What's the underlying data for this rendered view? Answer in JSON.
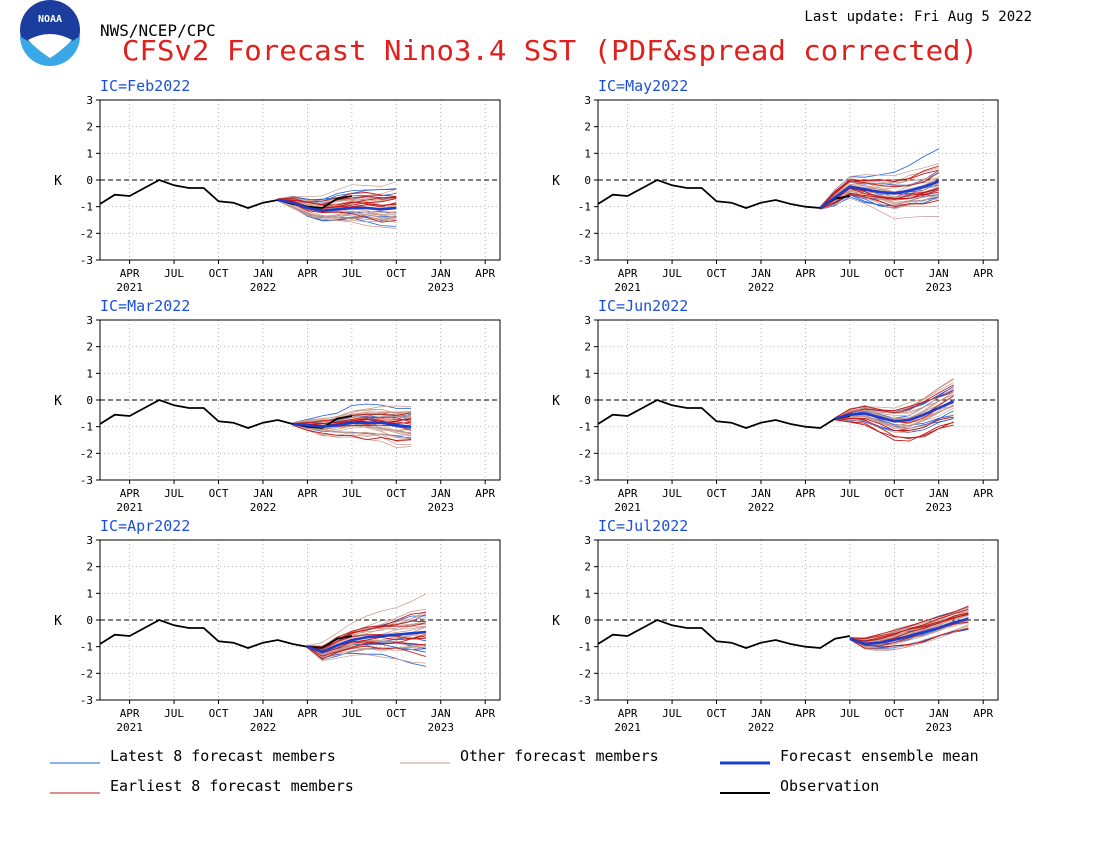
{
  "header": {
    "agency": "NWS/NCEP/CPC",
    "title": "CFSv2 Forecast Nino3.4 SST (PDF&spread corrected)",
    "last_update": "Last update: Fri Aug 5 2022",
    "logo_text": "NOAA"
  },
  "colors": {
    "latest": "#1f5fd9",
    "other": "#c8998a",
    "mean": "#1c3ccf",
    "earliest": "#c41818",
    "observation": "#000000",
    "title": "#e0201c",
    "ic_label": "#1a50d8"
  },
  "chart_data": {
    "type": "line",
    "ylabel": "K",
    "ylim": [
      -3,
      3
    ],
    "yticks": [
      "3",
      "2",
      "1",
      "0",
      "-1",
      "-2",
      "-3"
    ],
    "grid": true,
    "zero_line": "dashed",
    "x_ticks": [
      {
        "month": "APR",
        "year": "2021"
      },
      {
        "month": "JUL",
        "year": ""
      },
      {
        "month": "OCT",
        "year": ""
      },
      {
        "month": "JAN",
        "year": "2022"
      },
      {
        "month": "APR",
        "year": ""
      },
      {
        "month": "JUL",
        "year": ""
      },
      {
        "month": "OCT",
        "year": ""
      },
      {
        "month": "JAN",
        "year": "2023"
      },
      {
        "month": "APR",
        "year": ""
      }
    ],
    "x_range": [
      "2021-02",
      "2023-05"
    ],
    "observation": {
      "name": "Observation",
      "months": [
        "2021-02",
        "2021-03",
        "2021-04",
        "2021-05",
        "2021-06",
        "2021-07",
        "2021-08",
        "2021-09",
        "2021-10",
        "2021-11",
        "2021-12",
        "2022-01",
        "2022-02",
        "2022-03",
        "2022-04",
        "2022-05",
        "2022-06",
        "2022-07"
      ],
      "values": [
        -0.9,
        -0.55,
        -0.6,
        -0.3,
        0.0,
        -0.2,
        -0.3,
        -0.3,
        -0.8,
        -0.85,
        -1.05,
        -0.85,
        -0.75,
        -0.9,
        -1.0,
        -1.05,
        -0.7,
        -0.6
      ]
    },
    "panels": [
      {
        "label": "IC=Feb2022",
        "start": "2022-02",
        "length": 9,
        "mean": [
          -0.75,
          -0.85,
          -1.05,
          -1.15,
          -1.1,
          -1.05,
          -1.05,
          -1.1,
          -1.05
        ],
        "spread": [
          0.05,
          0.25,
          0.4,
          0.5,
          0.6,
          0.65,
          0.7,
          0.75,
          0.8
        ]
      },
      {
        "label": "IC=Mar2022",
        "start": "2022-03",
        "length": 9,
        "mean": [
          -0.9,
          -0.95,
          -1.0,
          -0.95,
          -0.85,
          -0.85,
          -0.85,
          -0.95,
          -1.0
        ],
        "spread": [
          0.05,
          0.25,
          0.4,
          0.5,
          0.6,
          0.7,
          0.75,
          0.85,
          0.9
        ]
      },
      {
        "label": "IC=Apr2022",
        "start": "2022-04",
        "length": 9,
        "mean": [
          -1.0,
          -1.2,
          -0.95,
          -0.75,
          -0.65,
          -0.6,
          -0.55,
          -0.5,
          -0.45
        ],
        "spread": [
          0.05,
          0.35,
          0.45,
          0.55,
          0.6,
          0.7,
          0.8,
          0.9,
          1.0
        ]
      },
      {
        "label": "IC=May2022",
        "start": "2022-05",
        "length": 9,
        "mean": [
          -1.05,
          -0.65,
          -0.25,
          -0.35,
          -0.45,
          -0.5,
          -0.4,
          -0.25,
          -0.05
        ],
        "spread": [
          0.05,
          0.3,
          0.4,
          0.5,
          0.6,
          0.7,
          0.75,
          0.8,
          0.85
        ]
      },
      {
        "label": "IC=Jun2022",
        "start": "2022-06",
        "length": 9,
        "mean": [
          -0.7,
          -0.55,
          -0.5,
          -0.65,
          -0.8,
          -0.75,
          -0.55,
          -0.3,
          -0.05
        ],
        "spread": [
          0.05,
          0.3,
          0.4,
          0.5,
          0.6,
          0.65,
          0.7,
          0.75,
          0.8
        ]
      },
      {
        "label": "IC=Jul2022",
        "start": "2022-07",
        "length": 9,
        "mean": [
          -0.7,
          -0.9,
          -0.85,
          -0.75,
          -0.6,
          -0.45,
          -0.3,
          -0.1,
          0.05
        ],
        "spread": [
          0.05,
          0.25,
          0.35,
          0.4,
          0.45,
          0.45,
          0.45,
          0.45,
          0.45
        ]
      }
    ]
  },
  "legend": {
    "latest": "Latest 8 forecast members",
    "other": "Other forecast members",
    "mean": "Forecast ensemble mean",
    "earliest": "Earliest 8 forecast members",
    "observation": "Observation"
  }
}
